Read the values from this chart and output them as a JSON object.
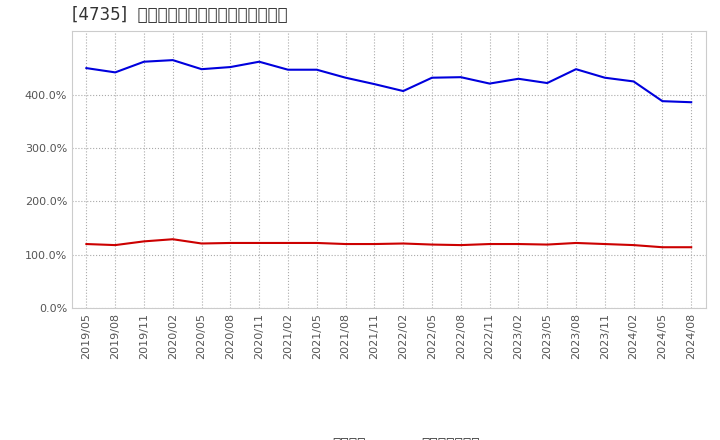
{
  "title": "[4735]  固定比率、固定長期適合率の推移",
  "x_labels": [
    "2019/05",
    "2019/08",
    "2019/11",
    "2020/02",
    "2020/05",
    "2020/08",
    "2020/11",
    "2021/02",
    "2021/05",
    "2021/08",
    "2021/11",
    "2022/02",
    "2022/05",
    "2022/08",
    "2022/11",
    "2023/02",
    "2023/05",
    "2023/08",
    "2023/11",
    "2024/02",
    "2024/05",
    "2024/08"
  ],
  "fixed_ratio": [
    450.0,
    442.0,
    462.0,
    465.0,
    448.0,
    452.0,
    462.0,
    447.0,
    447.0,
    432.0,
    420.0,
    407.0,
    432.0,
    433.0,
    421.0,
    430.0,
    422.0,
    448.0,
    432.0,
    425.0,
    388.0,
    386.0
  ],
  "fixed_long_ratio": [
    120.0,
    118.0,
    125.0,
    129.0,
    121.0,
    122.0,
    122.0,
    122.0,
    122.0,
    120.0,
    120.0,
    121.0,
    119.0,
    118.0,
    120.0,
    120.0,
    119.0,
    122.0,
    120.0,
    118.0,
    114.0,
    114.0
  ],
  "line1_color": "#0000dd",
  "line2_color": "#cc0000",
  "background_color": "#ffffff",
  "plot_bg_color": "#ffffff",
  "grid_color": "#aaaaaa",
  "ylim": [
    0.0,
    520.0
  ],
  "yticks": [
    0.0,
    100.0,
    200.0,
    300.0,
    400.0
  ],
  "legend_labels": [
    "固定比率",
    "固定長期適合率"
  ],
  "title_color": "#333333",
  "title_fontsize": 12,
  "tick_fontsize": 8,
  "legend_fontsize": 10,
  "linewidth": 1.5
}
